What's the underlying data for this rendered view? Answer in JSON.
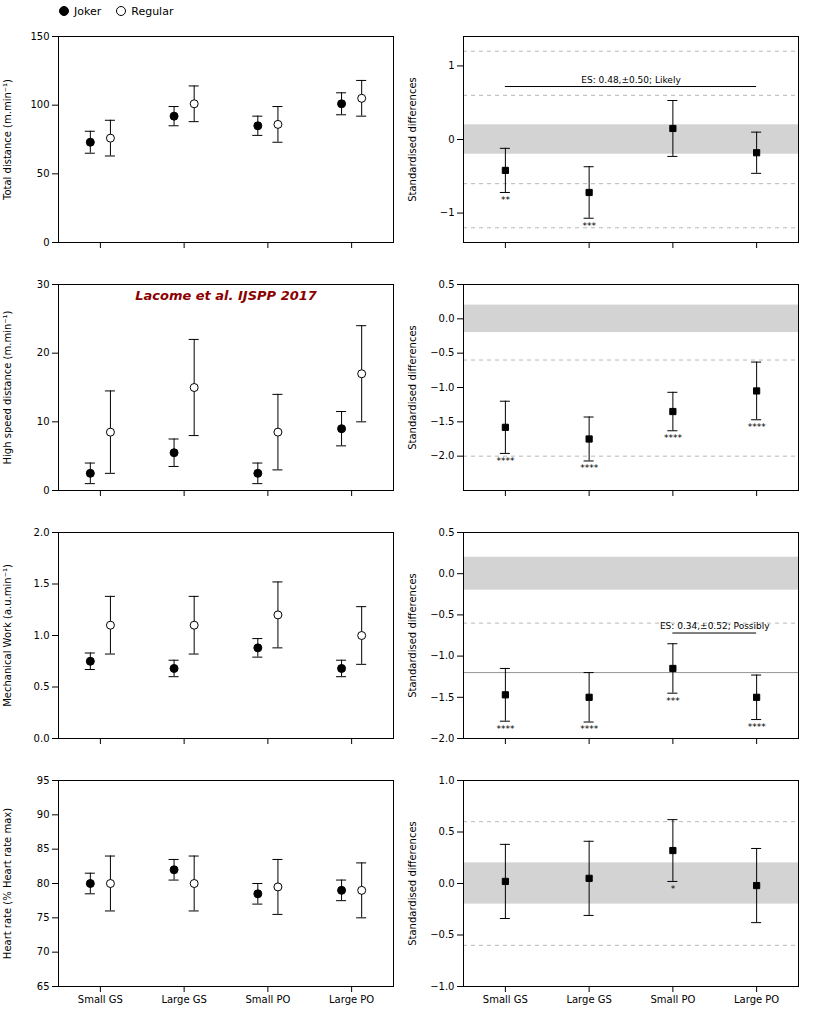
{
  "chart_data": [
    {
      "type": "errorbar",
      "categories": [
        "Small GS",
        "Large GS",
        "Small PO",
        "Large PO"
      ],
      "ylabel": "Total distance (m.min⁻¹)",
      "ylim": [
        0,
        150
      ],
      "yticks": [
        0,
        50,
        100,
        150
      ],
      "grid": false,
      "tick_labels": "y",
      "legend": "upper left",
      "series": [
        {
          "name": "Joker",
          "color": "black",
          "marker": "circle",
          "values": [
            73,
            92,
            85,
            101
          ],
          "errors": [
            8,
            7,
            7,
            8
          ]
        },
        {
          "name": "Regular",
          "color": "black",
          "marker": "open_circle",
          "values": [
            76,
            101,
            86,
            105
          ],
          "errors": [
            13,
            13,
            13,
            13
          ]
        }
      ]
    },
    {
      "type": "errorbar",
      "categories": [
        "Small GS",
        "Large GS",
        "Small PO",
        "Large PO"
      ],
      "ylabel": "Standardised differences",
      "ylim": [
        -1.4,
        1.4
      ],
      "yticks": [
        -1,
        0,
        1
      ],
      "grid": false,
      "tick_labels": "y",
      "series": [
        {
          "color": "black",
          "marker": "square",
          "values": [
            -0.42,
            -0.72,
            0.15,
            -0.18
          ],
          "errors": [
            0.3,
            0.35,
            0.38,
            0.28
          ]
        }
      ],
      "stars": [
        "**",
        "***",
        null,
        null
      ],
      "band": {
        "y1": -0.2,
        "y2": 0.2,
        "color": "#d3d3d3"
      },
      "hlines": [
        {
          "y": -1.2,
          "line_style": "dashed",
          "color": "#b0b0b0"
        },
        {
          "y": -0.6,
          "line_style": "dashed",
          "color": "#b0b0b0"
        },
        {
          "y": 0.6,
          "line_style": "dashed",
          "color": "#b0b0b0"
        },
        {
          "y": 1.2,
          "line_style": "dashed",
          "color": "#b0b0b0"
        }
      ],
      "annotations": [
        {
          "text": "ES: 0.48,±0.50; Likely",
          "from": "Small GS",
          "to": "Large PO",
          "y": 0.72
        }
      ]
    },
    {
      "type": "errorbar",
      "categories": [
        "Small GS",
        "Large GS",
        "Small PO",
        "Large PO"
      ],
      "ylabel": "High speed distance (m.min⁻¹)",
      "ylim": [
        0,
        30
      ],
      "yticks": [
        0,
        10,
        20,
        30
      ],
      "grid": false,
      "tick_labels": "y",
      "series": [
        {
          "name": "Joker",
          "color": "black",
          "marker": "circle",
          "values": [
            2.5,
            5.5,
            2.5,
            9
          ],
          "errors": [
            1.5,
            2,
            1.5,
            2.5
          ]
        },
        {
          "name": "Regular",
          "color": "black",
          "marker": "open_circle",
          "values": [
            8.5,
            15,
            8.5,
            17
          ],
          "errors": [
            6,
            7,
            5.5,
            7
          ]
        }
      ],
      "annotations": [
        {
          "text": "Lacome et al. IJSPP 2017",
          "color": "darkred"
        }
      ]
    },
    {
      "type": "errorbar",
      "categories": [
        "Small GS",
        "Large GS",
        "Small PO",
        "Large PO"
      ],
      "ylabel": "Standardised differences",
      "ylim": [
        -2.5,
        0.5
      ],
      "yticks": [
        {
          "value": -2.0,
          "label": "−2.0"
        },
        -1.5,
        {
          "value": -1.0,
          "label": "−1.0"
        },
        -0.5,
        {
          "value": 0.0,
          "label": "0.0"
        },
        0.5
      ],
      "grid": false,
      "tick_labels": "y",
      "series": [
        {
          "color": "black",
          "marker": "square",
          "values": [
            -1.58,
            -1.75,
            -1.35,
            -1.05
          ],
          "errors": [
            0.38,
            0.32,
            0.28,
            0.42
          ]
        }
      ],
      "stars": [
        "****",
        "****",
        "****",
        "****"
      ],
      "band": {
        "y1": -0.2,
        "y2": 0.2,
        "color": "#d3d3d3"
      },
      "hlines": [
        {
          "y": -2.0,
          "line_style": "dashed",
          "color": "#b0b0b0"
        },
        {
          "y": -0.6,
          "line_style": "dashed",
          "color": "#b0b0b0"
        }
      ]
    },
    {
      "type": "errorbar",
      "categories": [
        "Small GS",
        "Large GS",
        "Small PO",
        "Large PO"
      ],
      "ylabel": "Mechanical Work (a.u.min⁻¹)",
      "ylim": [
        0.0,
        2.0
      ],
      "yticks": [
        {
          "value": 0.0,
          "label": "0.0"
        },
        0.5,
        {
          "value": 1.0,
          "label": "1.0"
        },
        1.5,
        {
          "value": 2.0,
          "label": "2.0"
        }
      ],
      "grid": false,
      "tick_labels": "y",
      "series": [
        {
          "name": "Joker",
          "color": "black",
          "marker": "circle",
          "values": [
            0.75,
            0.68,
            0.88,
            0.68
          ],
          "errors": [
            0.08,
            0.08,
            0.09,
            0.08
          ]
        },
        {
          "name": "Regular",
          "color": "black",
          "marker": "open_circle",
          "values": [
            1.1,
            1.1,
            1.2,
            1.0
          ],
          "errors": [
            0.28,
            0.28,
            0.32,
            0.28
          ]
        }
      ]
    },
    {
      "type": "errorbar",
      "categories": [
        "Small GS",
        "Large GS",
        "Small PO",
        "Large PO"
      ],
      "ylabel": "Standardised differences",
      "ylim": [
        -2.0,
        0.5
      ],
      "yticks": [
        {
          "value": -2.0,
          "label": "−2.0"
        },
        -1.5,
        {
          "value": -1.0,
          "label": "−1.0"
        },
        -0.5,
        {
          "value": 0.0,
          "label": "0.0"
        },
        0.5
      ],
      "grid": false,
      "tick_labels": "y",
      "series": [
        {
          "color": "black",
          "marker": "square",
          "values": [
            -1.47,
            -1.5,
            -1.15,
            -1.5
          ],
          "errors": [
            0.32,
            0.3,
            0.3,
            0.27
          ]
        }
      ],
      "stars": [
        "****",
        "****",
        "***",
        "****"
      ],
      "band": {
        "y1": -0.2,
        "y2": 0.2,
        "color": "#d3d3d3"
      },
      "hlines": [
        {
          "y": -0.6,
          "line_style": "dashed",
          "color": "#b0b0b0"
        },
        {
          "y": -1.2,
          "line_style": "solid",
          "color": "#888888"
        }
      ],
      "annotations": [
        {
          "text": "ES: 0.34,±0.52; Possibly",
          "from": "Small PO",
          "to": "Large PO",
          "y": -0.72
        }
      ]
    },
    {
      "type": "errorbar",
      "categories": [
        "Small GS",
        "Large GS",
        "Small PO",
        "Large PO"
      ],
      "ylabel": "Heart rate (% Heart rate max)",
      "ylim": [
        65,
        95
      ],
      "yticks": [
        65,
        70,
        75,
        80,
        85,
        90,
        95
      ],
      "grid": false,
      "series": [
        {
          "name": "Joker",
          "color": "black",
          "marker": "circle",
          "values": [
            80,
            82,
            78.5,
            79
          ],
          "errors": [
            1.5,
            1.5,
            1.5,
            1.5
          ]
        },
        {
          "name": "Regular",
          "color": "black",
          "marker": "open_circle",
          "values": [
            80,
            80,
            79.5,
            79
          ],
          "errors": [
            4,
            4,
            4,
            4
          ]
        }
      ]
    },
    {
      "type": "errorbar",
      "categories": [
        "Small GS",
        "Large GS",
        "Small PO",
        "Large PO"
      ],
      "ylabel": "Standardised differences",
      "ylim": [
        -1.0,
        1.0
      ],
      "yticks": [
        {
          "value": -1.0,
          "label": "−1.0"
        },
        -0.5,
        {
          "value": 0.0,
          "label": "0.0"
        },
        0.5,
        {
          "value": 1.0,
          "label": "1.0"
        }
      ],
      "grid": false,
      "series": [
        {
          "color": "black",
          "marker": "square",
          "values": [
            0.02,
            0.05,
            0.32,
            -0.02
          ],
          "errors": [
            0.36,
            0.36,
            0.3,
            0.36
          ]
        }
      ],
      "stars": [
        null,
        null,
        "*",
        null
      ],
      "band": {
        "y1": -0.2,
        "y2": 0.2,
        "color": "#d3d3d3"
      },
      "hlines": [
        {
          "y": -0.6,
          "line_style": "dashed",
          "color": "#b0b0b0"
        },
        {
          "y": 0.6,
          "line_style": "dashed",
          "color": "#b0b0b0"
        }
      ]
    }
  ]
}
